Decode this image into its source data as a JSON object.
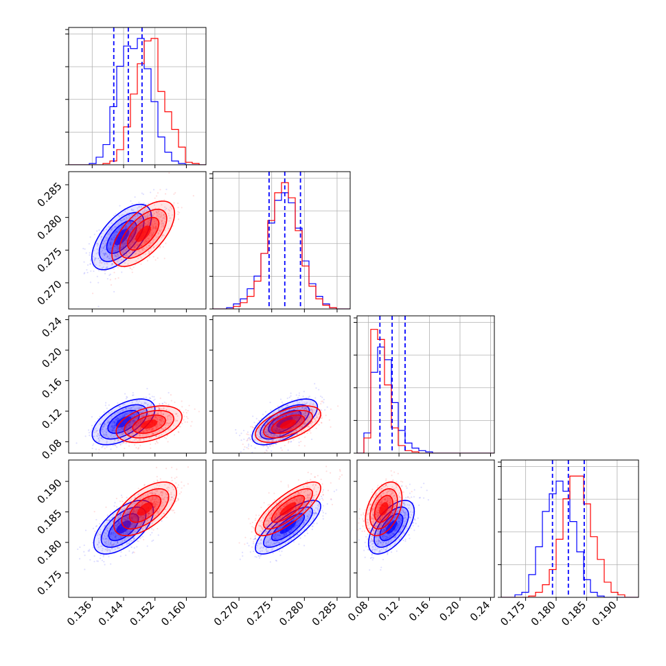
{
  "chart_data": {
    "type": "corner",
    "title": "",
    "series": [
      {
        "color": "#0000ff"
      },
      {
        "color": "#ff0000"
      }
    ],
    "parameters": [
      {
        "range": [
          0.13,
          0.165
        ],
        "ticks": [
          "0.136",
          "0.144",
          "0.152",
          "0.160"
        ],
        "tick_values": [
          0.136,
          0.144,
          0.152,
          0.16
        ],
        "quantiles_blue": [
          0.1415,
          0.1452,
          0.1487
        ],
        "hist_blue": [
          0.0,
          0.0,
          0.0,
          0.01,
          0.06,
          0.16,
          0.46,
          0.78,
          0.94,
          0.92,
          1.0,
          0.76,
          0.5,
          0.22,
          0.1,
          0.03,
          0.01,
          0.0,
          0.0,
          0.0
        ],
        "hist_red": [
          0.0,
          0.0,
          0.0,
          0.0,
          0.0,
          0.01,
          0.03,
          0.12,
          0.3,
          0.56,
          0.8,
          0.98,
          1.0,
          0.58,
          0.42,
          0.28,
          0.14,
          0.02,
          0.01,
          0.0
        ],
        "grid_values": [
          0.136,
          0.144,
          0.152,
          0.16
        ]
      },
      {
        "range": [
          0.266,
          0.287
        ],
        "ticks": [
          "0.270",
          "0.275",
          "0.280",
          "0.285"
        ],
        "tick_values": [
          0.27,
          0.275,
          0.28,
          0.285
        ],
        "quantiles_blue": [
          0.2746,
          0.277,
          0.2794
        ],
        "hist_blue": [
          0.0,
          0.0,
          0.01,
          0.04,
          0.08,
          0.16,
          0.26,
          0.44,
          0.68,
          0.86,
          0.92,
          0.84,
          0.64,
          0.38,
          0.2,
          0.1,
          0.04,
          0.01,
          0.0,
          0.0
        ],
        "hist_red": [
          0.0,
          0.0,
          0.0,
          0.02,
          0.05,
          0.1,
          0.22,
          0.44,
          0.7,
          0.92,
          1.0,
          0.88,
          0.62,
          0.34,
          0.18,
          0.08,
          0.03,
          0.01,
          0.0,
          0.0
        ]
      },
      {
        "range": [
          0.065,
          0.245
        ],
        "ticks": [
          "0.08",
          "0.12",
          "0.16",
          "0.20",
          "0.24"
        ],
        "tick_values": [
          0.08,
          0.12,
          0.16,
          0.2,
          0.24
        ],
        "quantiles_blue": [
          0.095,
          0.111,
          0.128
        ],
        "hist_blue": [
          0.0,
          0.16,
          0.64,
          0.84,
          0.74,
          0.4,
          0.18,
          0.08,
          0.04,
          0.02,
          0.01,
          0.0,
          0.0,
          0.0,
          0.0,
          0.0,
          0.0,
          0.0,
          0.0,
          0.0
        ],
        "hist_red": [
          0.0,
          0.12,
          0.98,
          0.9,
          0.54,
          0.2,
          0.06,
          0.02,
          0.01,
          0.0,
          0.0,
          0.0,
          0.0,
          0.0,
          0.0,
          0.0,
          0.0,
          0.0,
          0.0,
          0.0
        ]
      },
      {
        "range": [
          0.171,
          0.1935
        ],
        "ticks": [
          "0.175",
          "0.180",
          "0.185",
          "0.190"
        ],
        "tick_values": [
          0.175,
          0.18,
          0.185,
          0.19
        ],
        "quantiles_blue": [
          0.1794,
          0.182,
          0.1846
        ],
        "hist_blue": [
          0.0,
          0.0,
          0.02,
          0.04,
          0.18,
          0.4,
          0.68,
          0.82,
          0.92,
          0.84,
          0.6,
          0.36,
          0.14,
          0.04,
          0.01,
          0.0,
          0.0,
          0.0,
          0.0,
          0.0
        ],
        "hist_red": [
          0.0,
          0.0,
          0.0,
          0.0,
          0.01,
          0.04,
          0.1,
          0.22,
          0.46,
          0.78,
          0.96,
          0.96,
          0.74,
          0.48,
          0.3,
          0.12,
          0.04,
          0.02,
          0.0,
          0.0
        ]
      }
    ],
    "pairs": [
      {
        "row": 1,
        "col": 0,
        "blue": {
          "mean": [
            0.1435,
            0.277
          ],
          "sd": [
            0.0038,
            0.0025
          ],
          "rho": 0.62
        },
        "red": {
          "mean": [
            0.149,
            0.2775
          ],
          "sd": [
            0.004,
            0.0025
          ],
          "rho": 0.62
        }
      },
      {
        "row": 2,
        "col": 0,
        "blue": {
          "mean": [
            0.144,
            0.106
          ],
          "sd": [
            0.004,
            0.015
          ],
          "rho": 0.55
        },
        "red": {
          "mean": [
            0.1505,
            0.103
          ],
          "sd": [
            0.0042,
            0.012
          ],
          "rho": 0.4
        }
      },
      {
        "row": 2,
        "col": 1,
        "blue": {
          "mean": [
            0.277,
            0.106
          ],
          "sd": [
            0.0025,
            0.015
          ],
          "rho": 0.65
        },
        "red": {
          "mean": [
            0.2775,
            0.103
          ],
          "sd": [
            0.0025,
            0.012
          ],
          "rho": 0.55
        }
      },
      {
        "row": 3,
        "col": 0,
        "blue": {
          "mean": [
            0.144,
            0.1825
          ],
          "sd": [
            0.0038,
            0.0022
          ],
          "rho": 0.6
        },
        "red": {
          "mean": [
            0.1495,
            0.1855
          ],
          "sd": [
            0.004,
            0.0022
          ],
          "rho": 0.6
        }
      },
      {
        "row": 3,
        "col": 1,
        "blue": {
          "mean": [
            0.2775,
            0.1825
          ],
          "sd": [
            0.0025,
            0.0022
          ],
          "rho": 0.78
        },
        "red": {
          "mean": [
            0.2775,
            0.1855
          ],
          "sd": [
            0.0025,
            0.0022
          ],
          "rho": 0.78
        }
      },
      {
        "row": 3,
        "col": 2,
        "blue": {
          "mean": [
            0.11,
            0.1825
          ],
          "sd": [
            0.015,
            0.0022
          ],
          "rho": 0.6
        },
        "red": {
          "mean": [
            0.1,
            0.1855
          ],
          "sd": [
            0.012,
            0.0022
          ],
          "rho": 0.4
        }
      }
    ],
    "grid": true
  }
}
